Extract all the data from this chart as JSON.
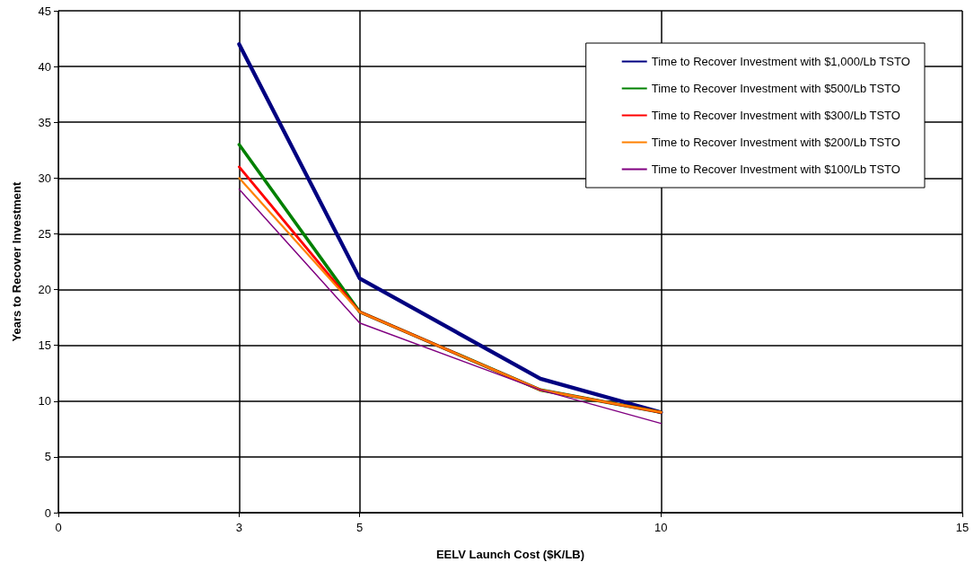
{
  "chart_data": {
    "type": "line",
    "xlabel": "EELV Launch Cost ($K/LB)",
    "ylabel": "Years to Recover Investment",
    "x": [
      3,
      5,
      8,
      10
    ],
    "series": [
      {
        "name": "Time to Recover Investment with $1,000/Lb TSTO",
        "color": "#000080",
        "values": [
          42,
          21,
          12,
          9
        ]
      },
      {
        "name": "Time to Recover Investment with $500/Lb TSTO",
        "color": "#008000",
        "values": [
          33,
          18,
          11,
          9
        ]
      },
      {
        "name": "Time to Recover Investment with $300/Lb TSTO",
        "color": "#ff0000",
        "values": [
          31,
          18,
          11,
          9
        ]
      },
      {
        "name": "Time to Recover Investment with $200/Lb TSTO",
        "color": "#ff8000",
        "values": [
          30,
          18,
          11,
          9
        ]
      },
      {
        "name": "Time to Recover Investment with $100/Lb TSTO",
        "color": "#800080",
        "values": [
          29,
          17,
          11,
          8
        ]
      }
    ],
    "xlim": [
      0,
      15
    ],
    "xticks": [
      0,
      3,
      5,
      10,
      15
    ],
    "ylim": [
      0,
      45
    ],
    "yticks": [
      0,
      5,
      10,
      15,
      20,
      25,
      30,
      35,
      40,
      45
    ],
    "grid": true,
    "legend": "top right",
    "marker": "none",
    "line_style": "solid"
  }
}
